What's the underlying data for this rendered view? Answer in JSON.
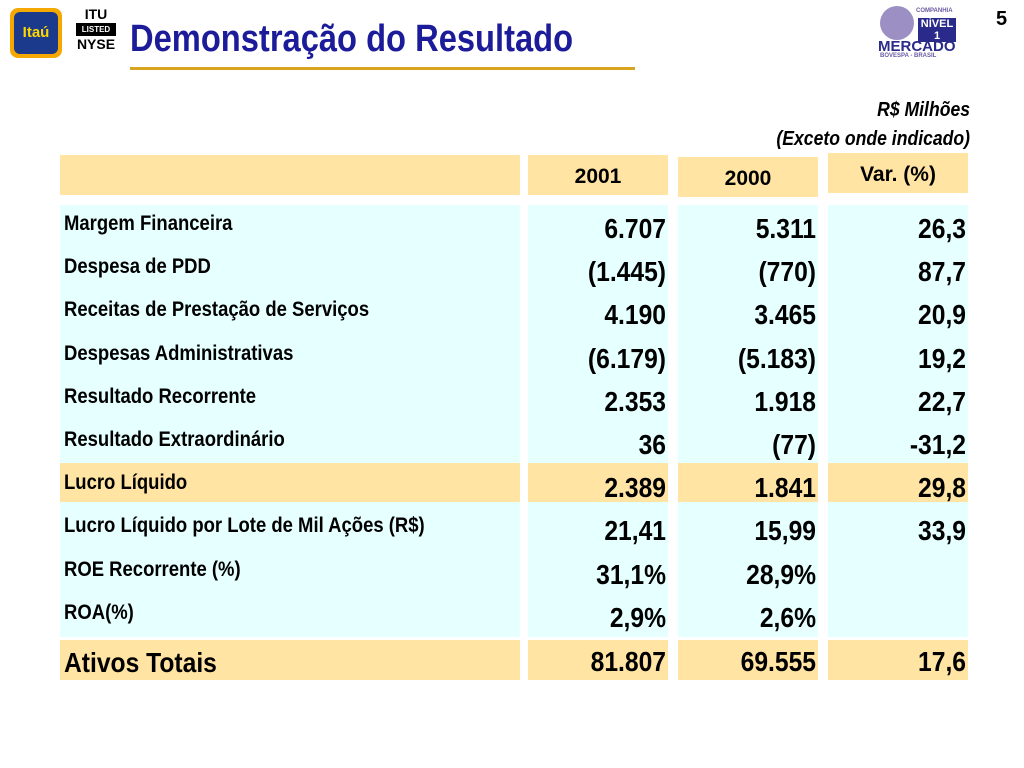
{
  "header": {
    "logo": "Itaú",
    "listing": [
      "ITU",
      "LISTED",
      "NYSE"
    ],
    "title": "Demonstração do Resultado",
    "page_number": "5",
    "badge": [
      "COMPANHIA",
      "NÍVEL 1",
      "MERCADO",
      "BOVESPA - BRASIL"
    ]
  },
  "units": [
    "R$ Milhões",
    "(Exceto onde indicado)"
  ],
  "table": {
    "columns": [
      "2001",
      "2000",
      "Var. (%)"
    ],
    "rows": [
      [
        "Margem Financeira",
        "6.707",
        "5.311",
        "26,3"
      ],
      [
        "Despesa de PDD",
        "(1.445)",
        "(770)",
        "87,7"
      ],
      [
        "Receitas de Prestação de Serviços",
        "4.190",
        "3.465",
        "20,9"
      ],
      [
        "Despesas Administrativas",
        "(6.179)",
        "(5.183)",
        "19,2"
      ],
      [
        "Resultado Recorrente",
        "2.353",
        "1.918",
        "22,7"
      ],
      [
        "Resultado Extraordinário",
        "36",
        "(77)",
        "-31,2"
      ],
      [
        "Lucro Líquido",
        "2.389",
        "1.841",
        "29,8"
      ],
      [
        "Lucro Líquido por Lote de Mil Ações (R$)",
        "21,41",
        "15,99",
        "33,9"
      ],
      [
        "ROE Recorrente (%)",
        "31,1%",
        "28,9%"
      ],
      [
        "ROA(%)",
        "2,9%",
        "2,6%"
      ],
      [
        "Ativos Totais",
        "81.807",
        "69.555",
        "17,6"
      ]
    ]
  }
}
